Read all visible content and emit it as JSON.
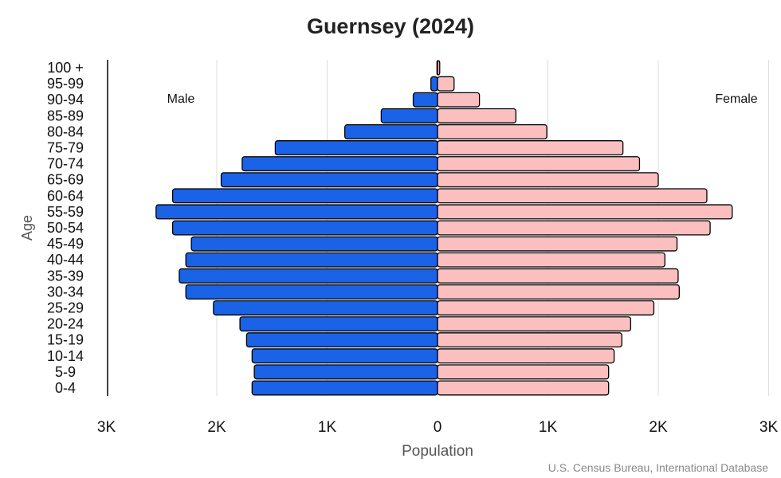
{
  "chart_data": {
    "type": "bar",
    "orientation": "horizontal",
    "title": "Guernsey (2024)",
    "xlabel": "Population",
    "ylabel": "Age",
    "xlim": [
      -3000,
      3000
    ],
    "x_ticks": [
      -3000,
      -2000,
      -1000,
      0,
      1000,
      2000,
      3000
    ],
    "x_tick_labels": [
      "3K",
      "2K",
      "1K",
      "0",
      "1K",
      "2K",
      "3K"
    ],
    "categories": [
      "0-4",
      "5-9",
      "10-14",
      "15-19",
      "20-24",
      "25-29",
      "30-34",
      "35-39",
      "40-44",
      "45-49",
      "50-54",
      "55-59",
      "60-64",
      "65-69",
      "70-74",
      "75-79",
      "80-84",
      "85-89",
      "90-94",
      "95-99",
      "100 +"
    ],
    "series": [
      {
        "name": "Male",
        "color": "#1a62e6",
        "values": [
          1680,
          1660,
          1680,
          1730,
          1790,
          2030,
          2280,
          2340,
          2280,
          2230,
          2400,
          2550,
          2400,
          1960,
          1770,
          1470,
          840,
          510,
          220,
          60,
          5
        ]
      },
      {
        "name": "Female",
        "color": "#fbbfbf",
        "values": [
          1550,
          1550,
          1600,
          1670,
          1750,
          1960,
          2190,
          2180,
          2060,
          2170,
          2470,
          2670,
          2440,
          2000,
          1830,
          1680,
          990,
          710,
          380,
          150,
          20
        ]
      }
    ],
    "grid": "vertical",
    "source": "U.S. Census Bureau, International Database"
  }
}
